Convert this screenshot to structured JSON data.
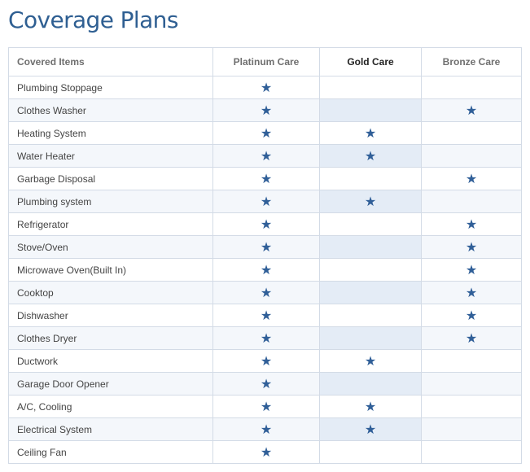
{
  "page": {
    "title": "Coverage Plans"
  },
  "table": {
    "headers": {
      "items": "Covered Items",
      "platinum": "Platinum Care",
      "gold": "Gold Care",
      "bronze": "Bronze Care"
    },
    "star_icon": "star-icon",
    "star_glyph": "★",
    "star_color": "#305f98",
    "rows": [
      {
        "item": "Plumbing Stoppage",
        "platinum": true,
        "gold": false,
        "bronze": false
      },
      {
        "item": "Clothes Washer",
        "platinum": true,
        "gold": false,
        "bronze": true
      },
      {
        "item": "Heating System",
        "platinum": true,
        "gold": true,
        "bronze": false
      },
      {
        "item": "Water Heater",
        "platinum": true,
        "gold": true,
        "bronze": false
      },
      {
        "item": "Garbage Disposal",
        "platinum": true,
        "gold": false,
        "bronze": true
      },
      {
        "item": "Plumbing system",
        "platinum": true,
        "gold": true,
        "bronze": false
      },
      {
        "item": "Refrigerator",
        "platinum": true,
        "gold": false,
        "bronze": true
      },
      {
        "item": "Stove/Oven",
        "platinum": true,
        "gold": false,
        "bronze": true
      },
      {
        "item": "Microwave Oven(Built In)",
        "platinum": true,
        "gold": false,
        "bronze": true
      },
      {
        "item": "Cooktop",
        "platinum": true,
        "gold": false,
        "bronze": true
      },
      {
        "item": "Dishwasher",
        "platinum": true,
        "gold": false,
        "bronze": true
      },
      {
        "item": "Clothes Dryer",
        "platinum": true,
        "gold": false,
        "bronze": true
      },
      {
        "item": "Ductwork",
        "platinum": true,
        "gold": true,
        "bronze": false
      },
      {
        "item": "Garage Door Opener",
        "platinum": true,
        "gold": false,
        "bronze": false
      },
      {
        "item": "A/C, Cooling",
        "platinum": true,
        "gold": true,
        "bronze": false
      },
      {
        "item": "Electrical System",
        "platinum": true,
        "gold": true,
        "bronze": false
      },
      {
        "item": "Ceiling Fan",
        "platinum": true,
        "gold": false,
        "bronze": false
      }
    ]
  }
}
